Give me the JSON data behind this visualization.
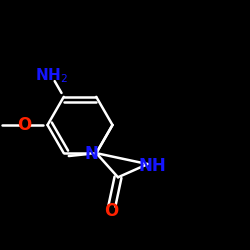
{
  "bg_color": "#000000",
  "bond_color": "#ffffff",
  "N_color": "#1515ff",
  "O_color": "#ff2200",
  "bond_width": 1.8,
  "figsize": [
    2.5,
    2.5
  ],
  "dpi": 100,
  "xlim": [
    0.0,
    1.0
  ],
  "ylim": [
    0.0,
    1.0
  ]
}
